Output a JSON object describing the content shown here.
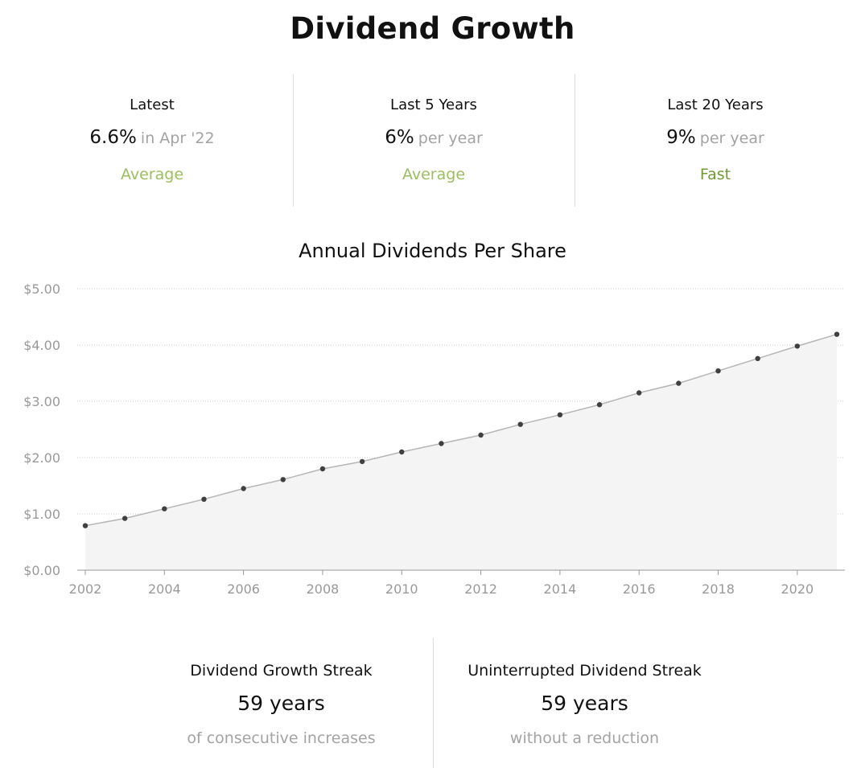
{
  "page": {
    "title": "Dividend Growth"
  },
  "stats": [
    {
      "label": "Latest",
      "value": "6.6%",
      "suffix": "in Apr '22",
      "rating": "Average",
      "rating_color": "#9bbf5f"
    },
    {
      "label": "Last 5 Years",
      "value": "6%",
      "suffix": "per year",
      "rating": "Average",
      "rating_color": "#9bbf5f"
    },
    {
      "label": "Last 20 Years",
      "value": "9%",
      "suffix": "per year",
      "rating": "Fast",
      "rating_color": "#6f9a35"
    }
  ],
  "chart_data": {
    "type": "area",
    "title": "Annual Dividends Per Share",
    "x": [
      2002,
      2003,
      2004,
      2005,
      2006,
      2007,
      2008,
      2009,
      2010,
      2011,
      2012,
      2013,
      2014,
      2015,
      2016,
      2017,
      2018,
      2019,
      2020,
      2021
    ],
    "values": [
      0.79,
      0.92,
      1.09,
      1.26,
      1.45,
      1.61,
      1.8,
      1.93,
      2.1,
      2.25,
      2.4,
      2.59,
      2.76,
      2.94,
      3.15,
      3.32,
      3.54,
      3.76,
      3.98,
      4.19
    ],
    "ylim": [
      0,
      5
    ],
    "yticks": [
      0,
      1,
      2,
      3,
      4,
      5
    ],
    "ytick_labels": [
      "$0.00",
      "$1.00",
      "$2.00",
      "$3.00",
      "$4.00",
      "$5.00"
    ],
    "xticks": [
      2002,
      2004,
      2006,
      2008,
      2010,
      2012,
      2014,
      2016,
      2018,
      2020
    ],
    "xtick_labels": [
      "2002",
      "2004",
      "2006",
      "2008",
      "2010",
      "2012",
      "2014",
      "2016",
      "2018",
      "2020"
    ],
    "grid": true,
    "colors": {
      "line": "#b5b5b5",
      "fill": "#f4f4f4",
      "point": "#404040",
      "grid": "#c8c8c8",
      "tick_text": "#999999"
    }
  },
  "streaks": [
    {
      "label": "Dividend Growth Streak",
      "value": "59 years",
      "sub": "of consecutive increases"
    },
    {
      "label": "Uninterrupted Dividend Streak",
      "value": "59 years",
      "sub": "without a reduction"
    }
  ]
}
